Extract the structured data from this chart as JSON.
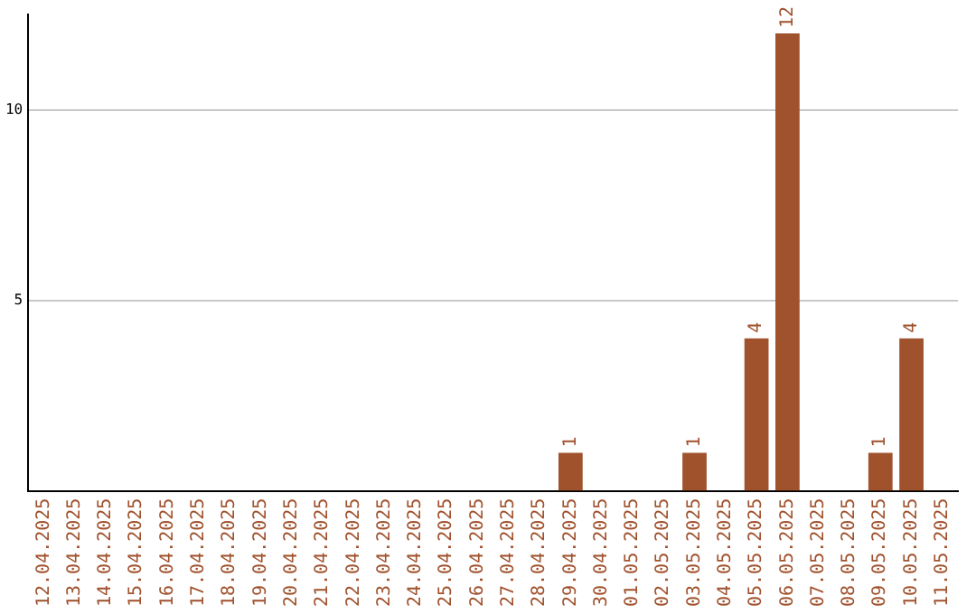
{
  "chart_data": {
    "type": "bar",
    "categories": [
      "12.04.2025",
      "13.04.2025",
      "14.04.2025",
      "15.04.2025",
      "16.04.2025",
      "17.04.2025",
      "18.04.2025",
      "19.04.2025",
      "20.04.2025",
      "21.04.2025",
      "22.04.2025",
      "23.04.2025",
      "24.04.2025",
      "25.04.2025",
      "26.04.2025",
      "27.04.2025",
      "28.04.2025",
      "29.04.2025",
      "30.04.2025",
      "01.05.2025",
      "02.05.2025",
      "03.05.2025",
      "04.05.2025",
      "05.05.2025",
      "06.05.2025",
      "07.05.2025",
      "08.05.2025",
      "09.05.2025",
      "10.05.2025",
      "11.05.2025"
    ],
    "values": [
      0,
      0,
      0,
      0,
      0,
      0,
      0,
      0,
      0,
      0,
      0,
      0,
      0,
      0,
      0,
      0,
      0,
      1,
      0,
      0,
      0,
      1,
      0,
      4,
      12,
      0,
      0,
      1,
      4,
      0
    ],
    "value_labels": [
      null,
      null,
      null,
      null,
      null,
      null,
      null,
      null,
      null,
      null,
      null,
      null,
      null,
      null,
      null,
      null,
      null,
      "1",
      null,
      null,
      null,
      "1",
      null,
      "4",
      "12",
      null,
      null,
      "1",
      "4",
      null
    ],
    "color": "#a0522d",
    "ylim": [
      0,
      12.5
    ],
    "yticks": [
      5,
      10
    ],
    "grid": "y",
    "legend": false
  }
}
